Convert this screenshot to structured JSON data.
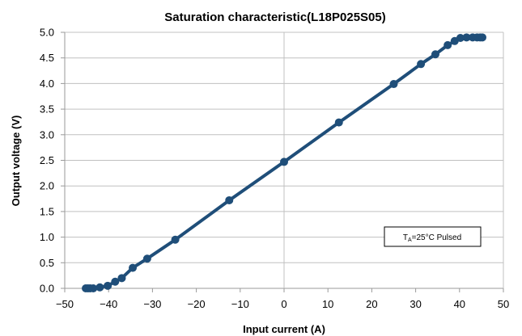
{
  "chart_data": {
    "type": "line",
    "title": "Saturation characteristic(L18P025S05)",
    "xlabel": "Input current (A)",
    "ylabel": "Output voltage (V)",
    "xlim": [
      -50,
      50
    ],
    "ylim": [
      0.0,
      5.0
    ],
    "x_ticks": [
      "−50",
      "−40",
      "−30",
      "−20",
      "−10",
      "0",
      "10",
      "20",
      "30",
      "40",
      "50"
    ],
    "x_tick_values": [
      -50,
      -40,
      -30,
      -20,
      -10,
      0,
      10,
      20,
      30,
      40,
      50
    ],
    "y_ticks": [
      "0.0",
      "0.5",
      "1.0",
      "1.5",
      "2.0",
      "2.5",
      "3.0",
      "3.5",
      "4.0",
      "4.5",
      "5.0"
    ],
    "y_tick_values": [
      0.0,
      0.5,
      1.0,
      1.5,
      2.0,
      2.5,
      3.0,
      3.5,
      4.0,
      4.5,
      5.0
    ],
    "grid": "horizontal major lines",
    "line_color": "#1f4e79",
    "marker_color": "#1f4e79",
    "series": [
      {
        "x": [
          -45.2,
          -44.7,
          -44.2,
          -43.5,
          -42.0,
          -40.2,
          -38.5,
          -37.0,
          -34.5,
          -31.2,
          -24.8,
          -12.5,
          0,
          12.5,
          25,
          31.2,
          34.5,
          37.3,
          38.9,
          40.2,
          41.6,
          43.0,
          44.0,
          44.7,
          45.2
        ],
        "y": [
          0.0,
          0.0,
          0.0,
          0.0,
          0.02,
          0.05,
          0.13,
          0.2,
          0.4,
          0.58,
          0.95,
          1.72,
          2.47,
          3.24,
          3.99,
          4.38,
          4.57,
          4.75,
          4.83,
          4.89,
          4.9,
          4.9,
          4.9,
          4.9,
          4.9
        ]
      }
    ],
    "annotation": {
      "main": "T",
      "sub": "A",
      "rest": "=25°C Pulsed"
    }
  }
}
